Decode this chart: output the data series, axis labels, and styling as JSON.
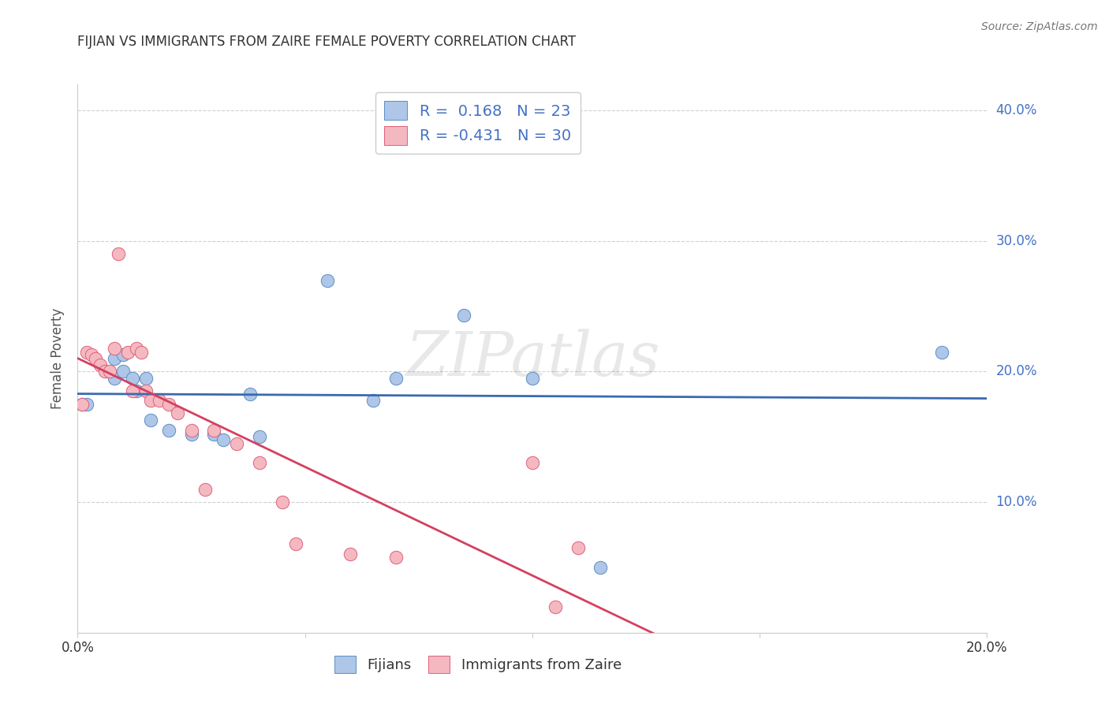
{
  "title": "FIJIAN VS IMMIGRANTS FROM ZAIRE FEMALE POVERTY CORRELATION CHART",
  "source": "Source: ZipAtlas.com",
  "ylabel": "Female Poverty",
  "watermark": "ZIPatlas",
  "xlim": [
    0.0,
    0.2
  ],
  "ylim": [
    0.0,
    0.42
  ],
  "xticks": [
    0.0,
    0.05,
    0.1,
    0.15,
    0.2
  ],
  "yticks": [
    0.0,
    0.1,
    0.2,
    0.3,
    0.4
  ],
  "legend_entries": [
    {
      "label": "R =  0.168   N = 23",
      "color": "#aec6e8"
    },
    {
      "label": "R = -0.431   N = 30",
      "color": "#f4b8c1"
    }
  ],
  "fijian_fill": "#aec6e8",
  "fijian_edge": "#5b8ec4",
  "zaire_fill": "#f4b8c1",
  "zaire_edge": "#e0607a",
  "fijian_line_color": "#3a6ab0",
  "zaire_line_color": "#d44060",
  "fijian_scatter": [
    [
      0.001,
      0.175
    ],
    [
      0.002,
      0.175
    ],
    [
      0.008,
      0.195
    ],
    [
      0.008,
      0.21
    ],
    [
      0.01,
      0.213
    ],
    [
      0.01,
      0.2
    ],
    [
      0.012,
      0.195
    ],
    [
      0.013,
      0.185
    ],
    [
      0.015,
      0.195
    ],
    [
      0.016,
      0.163
    ],
    [
      0.02,
      0.155
    ],
    [
      0.025,
      0.152
    ],
    [
      0.03,
      0.152
    ],
    [
      0.032,
      0.148
    ],
    [
      0.038,
      0.183
    ],
    [
      0.04,
      0.15
    ],
    [
      0.055,
      0.27
    ],
    [
      0.065,
      0.178
    ],
    [
      0.07,
      0.195
    ],
    [
      0.085,
      0.243
    ],
    [
      0.1,
      0.195
    ],
    [
      0.115,
      0.05
    ],
    [
      0.19,
      0.215
    ]
  ],
  "zaire_scatter": [
    [
      0.001,
      0.175
    ],
    [
      0.002,
      0.215
    ],
    [
      0.003,
      0.213
    ],
    [
      0.004,
      0.21
    ],
    [
      0.005,
      0.205
    ],
    [
      0.006,
      0.2
    ],
    [
      0.007,
      0.2
    ],
    [
      0.008,
      0.218
    ],
    [
      0.009,
      0.29
    ],
    [
      0.011,
      0.215
    ],
    [
      0.012,
      0.185
    ],
    [
      0.013,
      0.218
    ],
    [
      0.014,
      0.215
    ],
    [
      0.015,
      0.185
    ],
    [
      0.016,
      0.178
    ],
    [
      0.018,
      0.178
    ],
    [
      0.02,
      0.175
    ],
    [
      0.022,
      0.168
    ],
    [
      0.025,
      0.155
    ],
    [
      0.028,
      0.11
    ],
    [
      0.03,
      0.155
    ],
    [
      0.035,
      0.145
    ],
    [
      0.04,
      0.13
    ],
    [
      0.045,
      0.1
    ],
    [
      0.048,
      0.068
    ],
    [
      0.06,
      0.06
    ],
    [
      0.07,
      0.058
    ],
    [
      0.1,
      0.13
    ],
    [
      0.105,
      0.02
    ],
    [
      0.11,
      0.065
    ]
  ],
  "background_color": "#ffffff",
  "grid_color": "#d0d0d0",
  "title_color": "#333333",
  "axis_label_color": "#555555",
  "tick_label_color_x": "#333333",
  "tick_label_color_y": "#4472c4",
  "legend_text_color": "#4472c4",
  "bottom_label_color": "#333333"
}
